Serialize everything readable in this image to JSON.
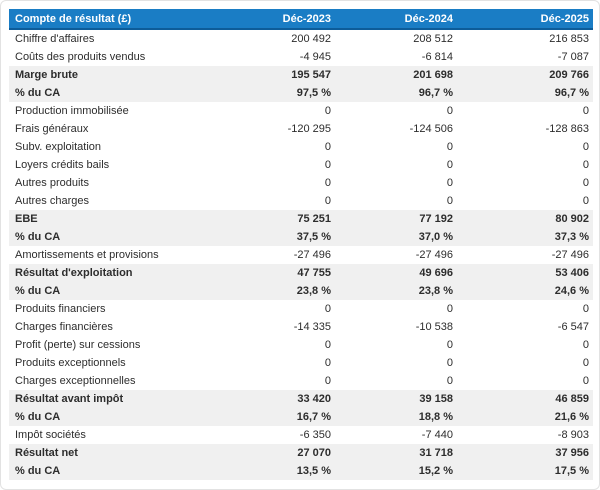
{
  "colors": {
    "header_bg": "#1a7dc5",
    "header_border": "#0d5c99",
    "highlight_row_bg": "#f0f0f0",
    "text": "#2d2d2d"
  },
  "table": {
    "header": {
      "label": "Compte de résultat (£)",
      "columns": [
        "Déc-2023",
        "Déc-2024",
        "Déc-2025"
      ]
    },
    "rows": [
      {
        "label": "Chiffre d'affaires",
        "values": [
          "200 492",
          "208 512",
          "216 853"
        ],
        "bold": false
      },
      {
        "label": "Coûts des produits vendus",
        "values": [
          "-4 945",
          "-6 814",
          "-7 087"
        ],
        "bold": false
      },
      {
        "label": "Marge brute",
        "values": [
          "195 547",
          "201 698",
          "209 766"
        ],
        "bold": true
      },
      {
        "label": "% du CA",
        "values": [
          "97,5 %",
          "96,7 %",
          "96,7 %"
        ],
        "bold": true
      },
      {
        "label": "Production immobilisée",
        "values": [
          "0",
          "0",
          "0"
        ],
        "bold": false
      },
      {
        "label": "Frais généraux",
        "values": [
          "-120 295",
          "-124 506",
          "-128 863"
        ],
        "bold": false
      },
      {
        "label": "Subv. exploitation",
        "values": [
          "0",
          "0",
          "0"
        ],
        "bold": false
      },
      {
        "label": "Loyers crédits bails",
        "values": [
          "0",
          "0",
          "0"
        ],
        "bold": false
      },
      {
        "label": "Autres produits",
        "values": [
          "0",
          "0",
          "0"
        ],
        "bold": false
      },
      {
        "label": "Autres charges",
        "values": [
          "0",
          "0",
          "0"
        ],
        "bold": false
      },
      {
        "label": "EBE",
        "values": [
          "75 251",
          "77 192",
          "80 902"
        ],
        "bold": true
      },
      {
        "label": "% du CA",
        "values": [
          "37,5 %",
          "37,0 %",
          "37,3 %"
        ],
        "bold": true
      },
      {
        "label": "Amortissements et provisions",
        "values": [
          "-27 496",
          "-27 496",
          "-27 496"
        ],
        "bold": false
      },
      {
        "label": "Résultat d'exploitation",
        "values": [
          "47 755",
          "49 696",
          "53 406"
        ],
        "bold": true
      },
      {
        "label": "% du CA",
        "values": [
          "23,8 %",
          "23,8 %",
          "24,6 %"
        ],
        "bold": true
      },
      {
        "label": "Produits financiers",
        "values": [
          "0",
          "0",
          "0"
        ],
        "bold": false
      },
      {
        "label": "Charges financières",
        "values": [
          "-14 335",
          "-10 538",
          "-6 547"
        ],
        "bold": false
      },
      {
        "label": "Profit (perte) sur cessions",
        "values": [
          "0",
          "0",
          "0"
        ],
        "bold": false
      },
      {
        "label": "Produits exceptionnels",
        "values": [
          "0",
          "0",
          "0"
        ],
        "bold": false
      },
      {
        "label": "Charges exceptionnelles",
        "values": [
          "0",
          "0",
          "0"
        ],
        "bold": false
      },
      {
        "label": "Résultat avant impôt",
        "values": [
          "33 420",
          "39 158",
          "46 859"
        ],
        "bold": true
      },
      {
        "label": "% du CA",
        "values": [
          "16,7 %",
          "18,8 %",
          "21,6 %"
        ],
        "bold": true
      },
      {
        "label": "Impôt sociétés",
        "values": [
          "-6 350",
          "-7 440",
          "-8 903"
        ],
        "bold": false
      },
      {
        "label": "Résultat net",
        "values": [
          "27 070",
          "31 718",
          "37 956"
        ],
        "bold": true
      },
      {
        "label": "% du CA",
        "values": [
          "13,5 %",
          "15,2 %",
          "17,5 %"
        ],
        "bold": true
      }
    ]
  }
}
